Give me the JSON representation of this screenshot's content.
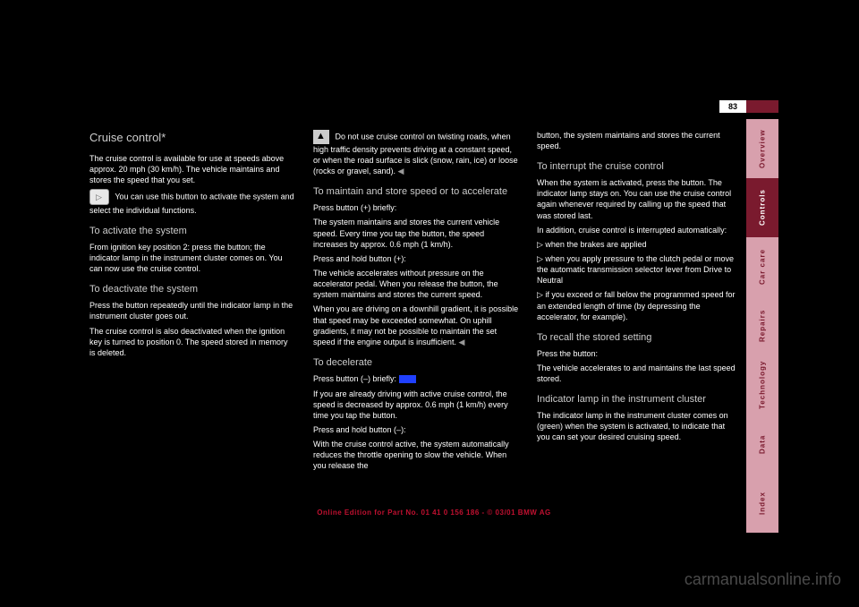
{
  "page_number": "83",
  "side_tabs": [
    {
      "label": "Overview",
      "cls": "tab-overview"
    },
    {
      "label": "Controls",
      "cls": "tab-controls"
    },
    {
      "label": "Car care",
      "cls": "tab-carcare"
    },
    {
      "label": "Repairs",
      "cls": "tab-repairs"
    },
    {
      "label": "Technology",
      "cls": "tab-technology"
    },
    {
      "label": "Data",
      "cls": "tab-data"
    },
    {
      "label": "Index",
      "cls": "tab-index"
    }
  ],
  "col1": {
    "heading": "Cruise control*",
    "p1": "The cruise control is available for use at speeds above approx. 20 mph (30 km/h). The vehicle maintains and stores the speed that you set.",
    "p2": "You can use this button to activate the system and select the individual functions.",
    "sub1": "To activate the system",
    "p3": "From ignition key position 2: press the button; the indicator lamp in the instrument cluster comes on. You can now use the cruise control.",
    "sub2": "To deactivate the system",
    "p4": "Press the button repeatedly until the indicator lamp in the instrument cluster goes out.",
    "p5": "The cruise control is also deactivated when the ignition key is turned to position 0. The speed stored in memory is deleted."
  },
  "col2": {
    "p1": "Do not use cruise control on twisting roads, when high traffic density prevents driving at a constant speed, or when the road surface is slick (snow, rain, ice) or loose (rocks or gravel, sand).",
    "sub1": "To maintain and store speed or to accelerate",
    "p2": "Press button (+) briefly:",
    "p3": "The system maintains and stores the current vehicle speed. Every time you tap the button, the speed increases by approx. 0.6 mph (1 km/h).",
    "p4": "Press and hold button (+):",
    "p5": "The vehicle accelerates without pressure on the accelerator pedal. When you release the button, the system maintains and stores the current speed.",
    "p6": "When you are driving on a downhill gradient, it is possible that speed may be exceeded somewhat. On uphill gradients, it may not be possible to maintain the set speed if the engine output is insufficient.",
    "sub2": "To decelerate",
    "p7": "Press button (–) briefly:",
    "p8": "If you are already driving with active cruise control, the speed is decreased by approx. 0.6 mph (1 km/h) every time you tap the button.",
    "p9": "Press and hold button (–):",
    "p10": "With the cruise control active, the system automatically reduces the throttle opening to slow the vehicle. When you release the",
    "ref": "125"
  },
  "col3": {
    "p1": "button, the system maintains and stores the current speed.",
    "sub1": "To interrupt the cruise control",
    "p2": "When the system is activated, press the button. The indicator lamp stays on. You can use the cruise control again whenever required by calling up the speed that was stored last.",
    "p3": "In addition, cruise control is interrupted automatically:",
    "b1": "when the brakes are applied",
    "b2": "when you apply pressure to the clutch pedal or move the automatic transmission selector lever from Drive to Neutral",
    "b3": "if you exceed or fall below the programmed speed for an extended length of time (by depressing the accelerator, for example).",
    "sub2": "To recall the stored setting",
    "p4": "Press the button:",
    "p5": "The vehicle accelerates to and maintains the last speed stored.",
    "sub3": "Indicator lamp in the instrument cluster",
    "p6": "The indicator lamp in the instrument cluster comes on (green) when the system is activated, to indicate that you can set your desired cruising speed."
  },
  "footer": "Online Edition for Part No. 01 41 0 156 186 - © 03/01 BMW AG",
  "watermark": "carmanualsonline.info",
  "colors": {
    "background": "#000000",
    "text": "#ffffff",
    "heading": "#cccccc",
    "tab_inactive_bg": "#d8a0ad",
    "tab_inactive_fg": "#7a1a2e",
    "tab_active_bg": "#7a1a2e",
    "tab_active_fg": "#ffffff",
    "footer_color": "#c01030",
    "link_color": "#2040ff",
    "watermark_color": "#4a4a4a"
  }
}
